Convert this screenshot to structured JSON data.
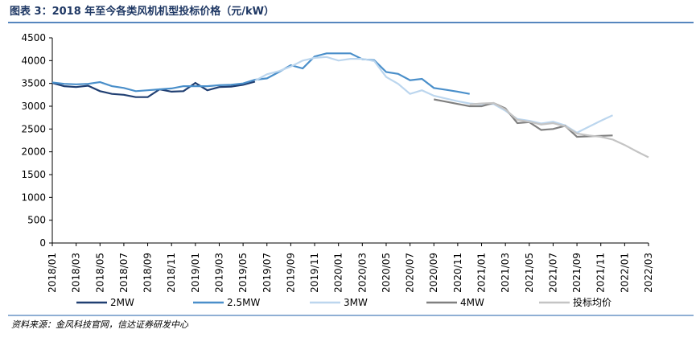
{
  "chart_data": {
    "type": "line",
    "title": "图表 3：2018 年至今各类风机机型投标价格（元/kW）",
    "source": "资料来源：金风科技官网，信达证券研发中心",
    "categories": [
      "2018/01",
      null,
      "2018/03",
      null,
      "2018/05",
      null,
      "2018/07",
      null,
      "2018/09",
      null,
      "2018/11",
      null,
      "2019/01",
      null,
      "2019/03",
      null,
      "2019/05",
      null,
      "2019/07",
      null,
      "2019/09",
      null,
      "2019/11",
      null,
      "2020/01",
      null,
      "2020/03",
      null,
      "2020/05",
      null,
      "2020/07",
      null,
      "2020/09",
      null,
      "2020/11",
      null,
      "2021/01",
      null,
      "2021/03",
      null,
      "2021/05",
      null,
      "2021/07",
      null,
      "2021/09",
      null,
      "2021/11",
      null,
      "2022/01",
      null,
      "2022/03"
    ],
    "ylim": [
      0,
      4500
    ],
    "yticks": [
      0,
      500,
      1000,
      1500,
      2000,
      2500,
      3000,
      3500,
      4000,
      4500
    ],
    "series": [
      {
        "name": "2MW",
        "color": "#203f72",
        "values": [
          3510,
          3440,
          3420,
          3450,
          3330,
          3270,
          3250,
          3200,
          3200,
          3370,
          3320,
          3330,
          3510,
          3350,
          3420,
          3430,
          3470,
          3540,
          null,
          null,
          null,
          null,
          null,
          null,
          null,
          null,
          null,
          null,
          null,
          null,
          null,
          null,
          null,
          null,
          null,
          null,
          null,
          null,
          null,
          null,
          null,
          null,
          null,
          null,
          null,
          null,
          null,
          null,
          null,
          null,
          null
        ]
      },
      {
        "name": "2.5MW",
        "color": "#4a8fca",
        "values": [
          3520,
          3490,
          3480,
          3490,
          3530,
          3440,
          3400,
          3330,
          3350,
          3370,
          3390,
          3440,
          3440,
          3440,
          3460,
          3470,
          3500,
          3580,
          3610,
          3750,
          3900,
          3830,
          4090,
          4160,
          4160,
          4160,
          4030,
          4010,
          3750,
          3710,
          3570,
          3600,
          3400,
          3360,
          3320,
          3270,
          null,
          null,
          null,
          null,
          null,
          null,
          null,
          null,
          null,
          null,
          null,
          null,
          null,
          null,
          null
        ]
      },
      {
        "name": "3MW",
        "color": "#bcd6ee",
        "values": [
          null,
          null,
          null,
          null,
          null,
          null,
          null,
          null,
          null,
          null,
          null,
          null,
          null,
          null,
          null,
          null,
          null,
          3560,
          3700,
          3770,
          3870,
          4000,
          4060,
          4080,
          4000,
          4040,
          4040,
          3990,
          3640,
          3490,
          3270,
          3350,
          3230,
          3170,
          3110,
          3060,
          3040,
          3050,
          2900,
          2720,
          2680,
          2620,
          2660,
          2580,
          2420,
          2550,
          2680,
          2800,
          null,
          null,
          null
        ]
      },
      {
        "name": "4MW",
        "color": "#808080",
        "values": [
          null,
          null,
          null,
          null,
          null,
          null,
          null,
          null,
          null,
          null,
          null,
          null,
          null,
          null,
          null,
          null,
          null,
          null,
          null,
          null,
          null,
          null,
          null,
          null,
          null,
          null,
          null,
          null,
          null,
          null,
          null,
          null,
          3150,
          3100,
          3050,
          3000,
          3000,
          3070,
          2950,
          2630,
          2650,
          2480,
          2500,
          2570,
          2330,
          2340,
          2350,
          2360,
          null,
          null,
          null
        ]
      },
      {
        "name": "投标均价",
        "color": "#c4c4c4",
        "values": [
          null,
          null,
          null,
          null,
          null,
          null,
          null,
          null,
          null,
          null,
          null,
          null,
          null,
          null,
          null,
          null,
          null,
          null,
          null,
          null,
          null,
          null,
          null,
          null,
          null,
          null,
          null,
          null,
          null,
          null,
          null,
          null,
          null,
          null,
          null,
          3040,
          3060,
          3070,
          2930,
          2700,
          2660,
          2600,
          2630,
          2560,
          2400,
          2360,
          2330,
          2270,
          2150,
          2010,
          1880
        ]
      }
    ]
  }
}
